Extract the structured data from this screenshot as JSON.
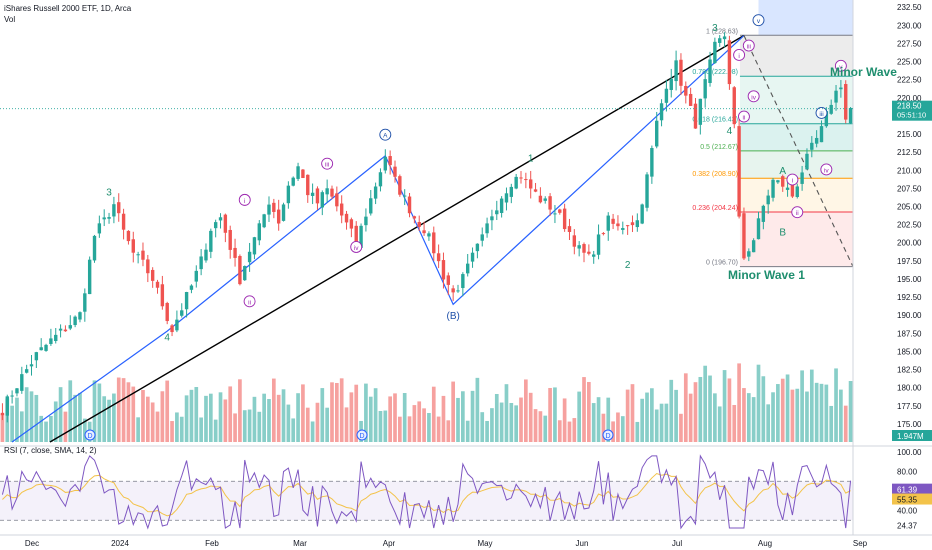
{
  "header": {
    "symbol_line": "iShares Russell 2000 ETF, 1D, Arca",
    "vol_label": "Vol",
    "rsi_label": "RSI (7, close, SMA, 14, 2)"
  },
  "colors": {
    "up": "#26a69a",
    "down": "#ef5350",
    "rsi_line": "#7e57c2",
    "rsi_sma": "#f3c34a",
    "blue_channel": "#2962ff",
    "wave_green": "#1e8e6e",
    "wave_blue": "#1e4fa8",
    "wave_purple": "#9c27b0"
  },
  "chart_data": {
    "type": "candlestick",
    "title": "iShares Russell 2000 ETF, 1D, Arca",
    "x_ticks": [
      "Dec",
      "2024",
      "Feb",
      "Mar",
      "Apr",
      "May",
      "Jun",
      "Jul",
      "Aug",
      "Sep"
    ],
    "y_ticks": [
      "232.50",
      "230.00",
      "227.50",
      "225.00",
      "222.50",
      "220.00",
      "217.50",
      "215.00",
      "212.50",
      "210.00",
      "207.50",
      "205.00",
      "202.50",
      "200.00",
      "197.50",
      "195.00",
      "192.50",
      "190.00",
      "187.50",
      "185.00",
      "182.50",
      "180.00",
      "177.50",
      "175.00"
    ],
    "ylim": [
      172.5,
      233.5
    ],
    "last_price": "218.50",
    "countdown": "05:51:10",
    "volume_last": "1.947M",
    "price_path": [
      [
        0,
        177.0
      ],
      [
        4,
        181.5
      ],
      [
        7,
        184.5
      ],
      [
        10,
        186.5
      ],
      [
        13,
        188.2
      ],
      [
        16,
        190.1
      ],
      [
        19,
        201.0
      ],
      [
        21,
        203.0
      ],
      [
        23,
        205.3
      ],
      [
        25,
        201.5
      ],
      [
        27,
        198.5
      ],
      [
        29,
        197.0
      ],
      [
        31,
        195.0
      ],
      [
        33,
        191.5
      ],
      [
        35,
        188.0
      ],
      [
        37,
        191.0
      ],
      [
        39,
        194.0
      ],
      [
        41,
        197.5
      ],
      [
        43,
        202.0
      ],
      [
        45,
        203.5
      ],
      [
        47,
        199.5
      ],
      [
        49,
        195.0
      ],
      [
        51,
        199.0
      ],
      [
        53,
        202.0
      ],
      [
        55,
        205.8
      ],
      [
        57,
        203.0
      ],
      [
        59,
        208.0
      ],
      [
        61,
        210.5
      ],
      [
        63,
        207.0
      ],
      [
        65,
        205.5
      ],
      [
        67,
        207.3
      ],
      [
        69,
        205.0
      ],
      [
        71,
        202.5
      ],
      [
        73,
        200.0
      ],
      [
        75,
        204.0
      ],
      [
        77,
        208.0
      ],
      [
        79,
        212.0
      ],
      [
        81,
        208.5
      ],
      [
        83,
        206.0
      ],
      [
        85,
        203.5
      ],
      [
        87,
        202.0
      ],
      [
        89,
        199.0
      ],
      [
        91,
        195.5
      ],
      [
        93,
        193.0
      ],
      [
        95,
        195.0
      ],
      [
        97,
        198.0
      ],
      [
        99,
        200.5
      ],
      [
        101,
        204.0
      ],
      [
        103,
        206.5
      ],
      [
        105,
        208.5
      ],
      [
        107,
        209.3
      ],
      [
        109,
        207.5
      ],
      [
        111,
        206.0
      ],
      [
        113,
        205.0
      ],
      [
        115,
        203.5
      ],
      [
        117,
        201.5
      ],
      [
        119,
        199.0
      ],
      [
        121,
        197.8
      ],
      [
        123,
        200.5
      ],
      [
        125,
        203.0
      ],
      [
        127,
        202.0
      ],
      [
        129,
        202.8
      ],
      [
        131,
        203.0
      ],
      [
        133,
        209.0
      ],
      [
        135,
        216.5
      ],
      [
        137,
        222.0
      ],
      [
        139,
        224.5
      ],
      [
        141,
        220.0
      ],
      [
        143,
        216.5
      ],
      [
        145,
        222.0
      ],
      [
        147,
        227.0
      ],
      [
        149,
        228.6
      ],
      [
        151,
        216.0
      ],
      [
        152,
        203.0
      ],
      [
        153,
        198.0
      ],
      [
        155,
        200.5
      ],
      [
        157,
        205.0
      ],
      [
        159,
        208.5
      ],
      [
        161,
        208.0
      ],
      [
        163,
        206.5
      ],
      [
        165,
        210.0
      ],
      [
        167,
        213.0
      ],
      [
        169,
        215.5
      ],
      [
        171,
        219.5
      ],
      [
        173,
        222.0
      ],
      [
        174,
        217.0
      ],
      [
        175,
        218.5
      ]
    ],
    "fibonacci": [
      {
        "level": "1",
        "value": 228.63,
        "label": "1 (228.63)"
      },
      {
        "level": "0.786",
        "value": 222.98,
        "label": "0.786 (222.98)"
      },
      {
        "level": "0.618",
        "value": 216.43,
        "label": "0.618 (216.43)"
      },
      {
        "level": "0.5",
        "value": 212.67,
        "label": "0.5 (212.67)"
      },
      {
        "level": "0.382",
        "value": 208.9,
        "label": "0.382 (208.90)"
      },
      {
        "level": "0.236",
        "value": 204.24,
        "label": "0.236 (204.24)"
      },
      {
        "level": "0",
        "value": 196.7,
        "label": "0 (196.70)"
      }
    ],
    "wave_labels": [
      {
        "text": "3",
        "bar": 22,
        "y": 206.5,
        "color": "green"
      },
      {
        "text": "4",
        "bar": 34,
        "y": 186.5,
        "color": "green"
      },
      {
        "text": "i",
        "bar": 50,
        "y": 205.5,
        "color": "purple",
        "circle": true
      },
      {
        "text": "ii",
        "bar": 51,
        "y": 191.5,
        "color": "purple",
        "circle": true
      },
      {
        "text": "iii",
        "bar": 67,
        "y": 210.5,
        "color": "purple",
        "circle": true
      },
      {
        "text": "iv",
        "bar": 73,
        "y": 199.0,
        "color": "purple",
        "circle": true
      },
      {
        "text": "A",
        "bar": 79,
        "y": 214.5,
        "color": "blue",
        "circle": true
      },
      {
        "text": "(B)",
        "bar": 93,
        "y": 189.5,
        "color": "blue"
      },
      {
        "text": "1",
        "bar": 109,
        "y": 211.2,
        "color": "green"
      },
      {
        "text": "2",
        "bar": 129,
        "y": 196.5,
        "color": "green"
      },
      {
        "text": "3",
        "bar": 147,
        "y": 229.2,
        "color": "green"
      },
      {
        "text": "4",
        "bar": 150,
        "y": 215.0,
        "color": "green"
      },
      {
        "text": "A",
        "bar": 161,
        "y": 209.5,
        "color": "green"
      },
      {
        "text": "B",
        "bar": 161,
        "y": 201.0,
        "color": "green"
      },
      {
        "text": "i",
        "bar": 163,
        "y": 208.3,
        "color": "purple",
        "circle": true
      },
      {
        "text": "ii",
        "bar": 164,
        "y": 203.8,
        "color": "purple",
        "circle": true
      },
      {
        "text": "iv",
        "bar": 170,
        "y": 209.7,
        "color": "purple",
        "circle": true
      },
      {
        "text": "iii",
        "bar": 169,
        "y": 217.5,
        "color": "blue",
        "circle": true
      },
      {
        "text": "v",
        "bar": 173,
        "y": 224.0,
        "color": "purple",
        "circle": true
      },
      {
        "text": "i",
        "bar": 152,
        "y": 225.5,
        "color": "purple",
        "circle": true
      },
      {
        "text": "ii",
        "bar": 153,
        "y": 217.0,
        "color": "purple",
        "circle": true
      },
      {
        "text": "iii",
        "bar": 154,
        "y": 226.8,
        "color": "purple",
        "circle": true
      },
      {
        "text": "iv",
        "bar": 155,
        "y": 219.8,
        "color": "purple",
        "circle": true
      },
      {
        "text": "v",
        "bar": 156,
        "y": 230.3,
        "color": "blue",
        "circle": true
      }
    ],
    "annotations": [
      "Minor Wave 1",
      "Minor Wave"
    ],
    "volume_markers": [
      "D",
      "D",
      "D"
    ],
    "rsi": {
      "label": "RSI (7, close, SMA, 14, 2)",
      "y_ticks": [
        "100.00",
        "80.00",
        "40.00",
        "24.37"
      ],
      "ylim": [
        20,
        100
      ],
      "upper_band": 70,
      "lower_band": 30,
      "rsi_value": "61.39",
      "sma_value": "55.35"
    }
  }
}
